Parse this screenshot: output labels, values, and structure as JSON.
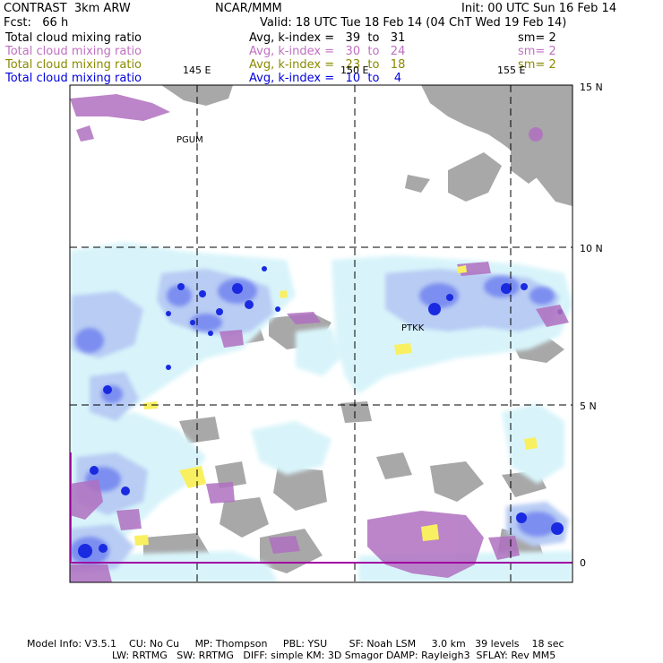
{
  "header": {
    "model": "CONTRAST  3km ARW",
    "forecast": "Fcst:   66 h",
    "center": "NCAR/MMM",
    "init": "Init: 00 UTC Sun 16 Feb 14",
    "valid": "Valid: 18 UTC Tue 18 Feb 14 (04 ChT Wed 19 Feb 14)"
  },
  "legend": [
    {
      "field": "Total cloud mixing ratio",
      "range": "Avg, k-index =   39  to   31",
      "smooth": "sm= 2",
      "color": "#000000"
    },
    {
      "field": "Total cloud mixing ratio",
      "range": "Avg, k-index =   30  to   24",
      "smooth": "sm= 2",
      "color": "#c070c0"
    },
    {
      "field": "Total cloud mixing ratio",
      "range": "Avg, k-index =   23  to   18",
      "smooth": "sm= 2",
      "color": "#8a8a00"
    },
    {
      "field": "Total cloud mixing ratio",
      "range": "Avg, k-index =   10  to    4",
      "smooth": "",
      "color": "#0000e0"
    }
  ],
  "axes": {
    "lon_labels": [
      "145 E",
      "150 E",
      "155 E"
    ],
    "lat_labels": [
      "15 N",
      "10 N",
      "5 N",
      "0"
    ]
  },
  "stations": [
    "PGUM",
    "PTKK"
  ],
  "footer": {
    "line1": "Model Info: V3.5.1    CU: No Cu     MP: Thompson     PBL: YSU       SF: Noah LSM     3.0 km   39 levels    18 sec",
    "line2": "LW: RRTMG   SW: RRTMG   DIFF: simple KM: 3D Smagor DAMP: Rayleigh3  SFLAY: Rev MM5"
  },
  "colors": {
    "gray": "#a8a8a8",
    "light_cyan": "#d8f4fa",
    "light_blue": "#b8ccf4",
    "mid_blue": "#7c8ef0",
    "dark_blue": "#1a2ae0",
    "purple": "#b070c0",
    "yellow": "#f8f060",
    "equator": "#a000a0"
  }
}
